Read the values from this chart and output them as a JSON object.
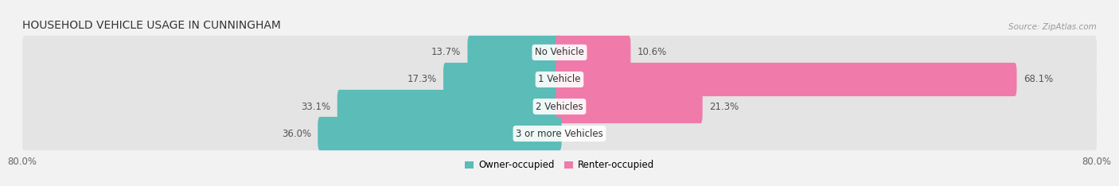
{
  "title": "HOUSEHOLD VEHICLE USAGE IN CUNNINGHAM",
  "source": "Source: ZipAtlas.com",
  "categories": [
    "No Vehicle",
    "1 Vehicle",
    "2 Vehicles",
    "3 or more Vehicles"
  ],
  "owner_values": [
    13.7,
    17.3,
    33.1,
    36.0
  ],
  "renter_values": [
    10.6,
    68.1,
    21.3,
    0.0
  ],
  "owner_color": "#5bbcb8",
  "renter_color": "#f07aaa",
  "owner_label": "Owner-occupied",
  "renter_label": "Renter-occupied",
  "axis_max": 80.0,
  "bg_color": "#f2f2f2",
  "bar_bg_color": "#e4e4e4",
  "title_fontsize": 10,
  "source_fontsize": 7.5,
  "label_fontsize": 8.5,
  "category_fontsize": 8.5,
  "legend_fontsize": 8.5,
  "axis_label_fontsize": 8.5,
  "bar_height": 0.62,
  "bar_spacing": 1.0
}
